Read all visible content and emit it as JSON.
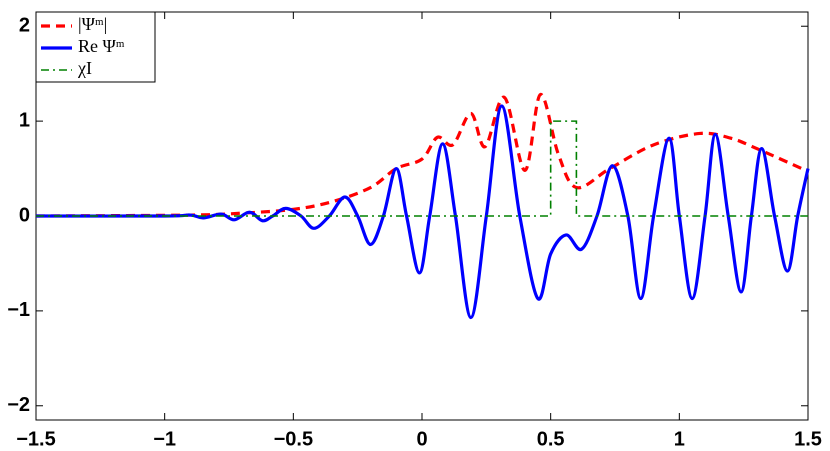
{
  "chart_data": {
    "type": "line",
    "xlim": [
      -1.5,
      1.5
    ],
    "ylim": [
      -2.15,
      2.15
    ],
    "xticks": [
      {
        "value": -1.5,
        "label": "−1.5"
      },
      {
        "value": -1,
        "label": "−1"
      },
      {
        "value": -0.5,
        "label": "−0.5"
      },
      0,
      0.5,
      1,
      1.5
    ],
    "yticks": [
      {
        "value": -2,
        "label": "−2"
      },
      {
        "value": -1,
        "label": "−1"
      },
      0,
      1,
      2
    ],
    "grid": false,
    "legend": "upper left",
    "series": [
      {
        "name": "|Ψᵐ|",
        "color": "#ff0000",
        "dash": "dashed",
        "interpolation": "smooth",
        "x": [
          -1.5,
          -0.9,
          -0.7,
          -0.5,
          -0.35,
          -0.2,
          -0.1,
          0.0,
          0.06,
          0.12,
          0.19,
          0.245,
          0.32,
          0.4,
          0.46,
          0.53,
          0.6,
          0.73,
          0.9,
          1.08,
          1.2,
          1.31,
          1.5
        ],
        "values": [
          0,
          0.01,
          0.03,
          0.07,
          0.15,
          0.3,
          0.5,
          0.6,
          0.83,
          0.75,
          1.08,
          0.73,
          1.25,
          0.48,
          1.28,
          0.65,
          0.3,
          0.5,
          0.75,
          0.87,
          0.82,
          0.7,
          0.47
        ]
      },
      {
        "name": "Re Ψᵐ",
        "color": "#0000ff",
        "dash": "solid",
        "interpolation": "smooth",
        "x": [
          -1.5,
          -1.0,
          -0.9,
          -0.85,
          -0.78,
          -0.73,
          -0.67,
          -0.62,
          -0.58,
          -0.53,
          -0.47,
          -0.42,
          -0.36,
          -0.3,
          -0.25,
          -0.2,
          -0.15,
          -0.1,
          -0.06,
          -0.01,
          0.03,
          0.08,
          0.13,
          0.19,
          0.25,
          0.31,
          0.38,
          0.45,
          0.5,
          0.56,
          0.62,
          0.68,
          0.74,
          0.8,
          0.85,
          0.9,
          0.96,
          1.0,
          1.05,
          1.1,
          1.14,
          1.19,
          1.24,
          1.28,
          1.32,
          1.37,
          1.42,
          1.46,
          1.5
        ],
        "values": [
          0,
          0,
          0.01,
          -0.02,
          0.02,
          -0.04,
          0.04,
          -0.05,
          0,
          0.08,
          0,
          -0.13,
          0,
          0.2,
          0,
          -0.3,
          0,
          0.5,
          0,
          -0.6,
          0,
          0.76,
          0,
          -1.07,
          0,
          1.16,
          0,
          -0.87,
          -0.4,
          -0.2,
          -0.35,
          0,
          0.53,
          0,
          -0.87,
          0,
          0.82,
          0,
          -0.87,
          0,
          0.86,
          0,
          -0.8,
          0,
          0.71,
          0,
          -0.58,
          0,
          0.5
        ]
      },
      {
        "name": "χI",
        "color": "#008000",
        "dash": "dashdot",
        "interpolation": "linear",
        "x": [
          -1.5,
          0.5,
          0.5,
          0.6,
          0.6,
          1.5
        ],
        "values": [
          0,
          0,
          1,
          1,
          0,
          0
        ]
      }
    ]
  }
}
